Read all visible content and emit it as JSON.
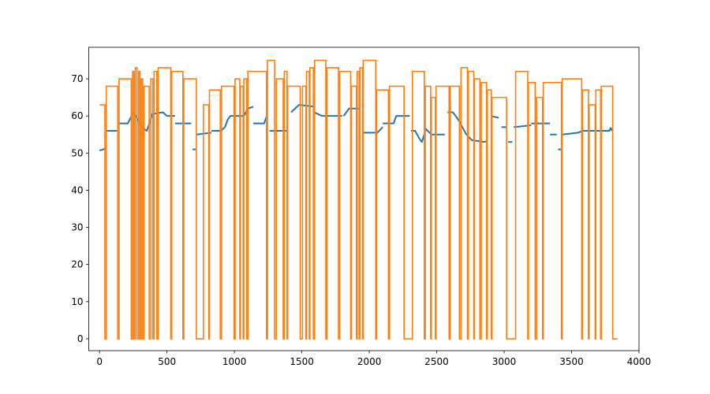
{
  "chart_data": {
    "type": "line",
    "title": "",
    "xlabel": "",
    "ylabel": "",
    "xlim": [
      -80,
      4000
    ],
    "ylim": [
      -3.2,
      78.5
    ],
    "xticks": [
      0,
      500,
      1000,
      1500,
      2000,
      2500,
      3000,
      3500,
      4000
    ],
    "yticks": [
      0,
      10,
      20,
      30,
      40,
      50,
      60,
      70
    ],
    "xtick_labels": [
      "0",
      "500",
      "1000",
      "1500",
      "2000",
      "2500",
      "3000",
      "3500",
      "4000"
    ],
    "ytick_labels": [
      "0",
      "10",
      "20",
      "30",
      "40",
      "50",
      "60",
      "70"
    ],
    "grid": false,
    "legend": false,
    "series": [
      {
        "color": "#1f77b4",
        "style": "step-segments",
        "segments": [
          [
            [
              0,
              50.7
            ],
            [
              30,
              51.0
            ],
            [
              50,
              51.6
            ]
          ],
          [
            [
              50,
              56.0
            ],
            [
              130,
              56.0
            ]
          ],
          [
            [
              140,
              58.0
            ],
            [
              210,
              58.0
            ],
            [
              230,
              59.5
            ],
            [
              250,
              61.0
            ],
            [
              270,
              60.0
            ],
            [
              300,
              58.0
            ],
            [
              330,
              56.5
            ],
            [
              350,
              56.0
            ],
            [
              370,
              58.0
            ],
            [
              390,
              60.5
            ],
            [
              470,
              61.0
            ],
            [
              500,
              60.0
            ],
            [
              560,
              60.0
            ]
          ],
          [
            [
              560,
              58.0
            ],
            [
              680,
              58.0
            ]
          ],
          [
            [
              690,
              51.0
            ],
            [
              720,
              51.0
            ]
          ],
          [
            [
              720,
              55.0
            ],
            [
              830,
              55.5
            ]
          ],
          [
            [
              830,
              56.0
            ],
            [
              900,
              56.0
            ],
            [
              930,
              57.0
            ],
            [
              950,
              59.0
            ],
            [
              970,
              60.0
            ],
            [
              1000,
              60.0
            ],
            [
              1070,
              60.0
            ],
            [
              1100,
              62.0
            ],
            [
              1140,
              62.5
            ]
          ],
          [
            [
              1140,
              58.0
            ],
            [
              1220,
              58.0
            ],
            [
              1240,
              60.0
            ]
          ],
          [
            [
              1260,
              56.0
            ],
            [
              1400,
              56.0
            ]
          ],
          [
            [
              1420,
              61.0
            ],
            [
              1480,
              63.0
            ],
            [
              1590,
              62.5
            ]
          ],
          [
            [
              1590,
              61.0
            ],
            [
              1650,
              60.0
            ],
            [
              1800,
              60.0
            ]
          ],
          [
            [
              1810,
              60.0
            ],
            [
              1850,
              62.0
            ],
            [
              1930,
              62.0
            ]
          ],
          [
            [
              1950,
              55.5
            ],
            [
              2060,
              55.5
            ],
            [
              2100,
              57.0
            ]
          ],
          [
            [
              2100,
              58.0
            ],
            [
              2180,
              58.0
            ],
            [
              2200,
              60.0
            ],
            [
              2300,
              60.0
            ]
          ],
          [
            [
              2310,
              56.0
            ],
            [
              2340,
              56.0
            ],
            [
              2370,
              54.0
            ],
            [
              2390,
              53.0
            ],
            [
              2420,
              56.5
            ],
            [
              2460,
              55.0
            ],
            [
              2560,
              55.0
            ]
          ],
          [
            [
              2580,
              61.0
            ],
            [
              2620,
              61.0
            ],
            [
              2660,
              59.0
            ],
            [
              2690,
              57.0
            ],
            [
              2720,
              55.0
            ],
            [
              2760,
              53.5
            ],
            [
              2850,
              53.0
            ],
            [
              2880,
              53.3
            ]
          ],
          [
            [
              2900,
              60.0
            ],
            [
              2960,
              59.5
            ]
          ],
          [
            [
              2980,
              57.0
            ],
            [
              3020,
              57.0
            ]
          ],
          [
            [
              3030,
              53.0
            ],
            [
              3060,
              53.0
            ]
          ],
          [
            [
              3070,
              57.0
            ],
            [
              3200,
              57.5
            ]
          ],
          [
            [
              3200,
              58.0
            ],
            [
              3340,
              58.0
            ]
          ],
          [
            [
              3340,
              55.0
            ],
            [
              3390,
              55.0
            ]
          ],
          [
            [
              3400,
              51.0
            ],
            [
              3430,
              51.0
            ]
          ],
          [
            [
              3430,
              55.0
            ],
            [
              3550,
              55.5
            ],
            [
              3580,
              56.0
            ],
            [
              3780,
              56.0
            ],
            [
              3790,
              56.8
            ],
            [
              3800,
              56.0
            ]
          ]
        ]
      },
      {
        "color": "#ff7f0e",
        "style": "step",
        "points": [
          [
            0,
            63
          ],
          [
            30,
            63
          ],
          [
            40,
            0
          ],
          [
            50,
            68
          ],
          [
            130,
            68
          ],
          [
            135,
            0
          ],
          [
            145,
            70
          ],
          [
            220,
            70
          ],
          [
            235,
            0
          ],
          [
            245,
            72
          ],
          [
            255,
            0
          ],
          [
            265,
            73
          ],
          [
            278,
            0
          ],
          [
            290,
            72
          ],
          [
            300,
            0
          ],
          [
            310,
            70
          ],
          [
            320,
            0
          ],
          [
            330,
            68
          ],
          [
            360,
            68
          ],
          [
            368,
            0
          ],
          [
            380,
            70
          ],
          [
            395,
            0
          ],
          [
            405,
            72
          ],
          [
            425,
            0
          ],
          [
            435,
            73
          ],
          [
            520,
            73
          ],
          [
            528,
            0
          ],
          [
            535,
            72
          ],
          [
            610,
            72
          ],
          [
            618,
            0
          ],
          [
            625,
            70
          ],
          [
            710,
            70
          ],
          [
            718,
            0
          ],
          [
            760,
            0
          ],
          [
            770,
            63
          ],
          [
            805,
            63
          ],
          [
            810,
            0
          ],
          [
            815,
            67
          ],
          [
            890,
            67
          ],
          [
            895,
            0
          ],
          [
            905,
            68
          ],
          [
            990,
            68
          ],
          [
            998,
            0
          ],
          [
            1005,
            70
          ],
          [
            1030,
            70
          ],
          [
            1040,
            0
          ],
          [
            1045,
            68
          ],
          [
            1060,
            68
          ],
          [
            1065,
            0
          ],
          [
            1070,
            70
          ],
          [
            1085,
            70
          ],
          [
            1090,
            0
          ],
          [
            1100,
            72
          ],
          [
            1230,
            72
          ],
          [
            1238,
            0
          ],
          [
            1245,
            75
          ],
          [
            1290,
            75
          ],
          [
            1298,
            0
          ],
          [
            1310,
            70
          ],
          [
            1355,
            70
          ],
          [
            1362,
            0
          ],
          [
            1370,
            72
          ],
          [
            1385,
            72
          ],
          [
            1390,
            0
          ],
          [
            1395,
            68
          ],
          [
            1480,
            68
          ],
          [
            1488,
            0
          ],
          [
            1500,
            0
          ],
          [
            1505,
            68
          ],
          [
            1525,
            68
          ],
          [
            1530,
            0
          ],
          [
            1535,
            72
          ],
          [
            1550,
            72
          ],
          [
            1555,
            0
          ],
          [
            1560,
            73
          ],
          [
            1580,
            73
          ],
          [
            1585,
            0
          ],
          [
            1595,
            75
          ],
          [
            1670,
            75
          ],
          [
            1678,
            0
          ],
          [
            1685,
            73
          ],
          [
            1765,
            73
          ],
          [
            1772,
            0
          ],
          [
            1780,
            72
          ],
          [
            1855,
            72
          ],
          [
            1862,
            0
          ],
          [
            1868,
            68
          ],
          [
            1900,
            68
          ],
          [
            1905,
            0
          ],
          [
            1910,
            72
          ],
          [
            1920,
            72
          ],
          [
            1925,
            0
          ],
          [
            1930,
            73
          ],
          [
            1945,
            73
          ],
          [
            1950,
            0
          ],
          [
            1955,
            75
          ],
          [
            2040,
            75
          ],
          [
            2048,
            0
          ],
          [
            2055,
            67
          ],
          [
            2135,
            67
          ],
          [
            2142,
            0
          ],
          [
            2150,
            68
          ],
          [
            2250,
            68
          ],
          [
            2258,
            0
          ],
          [
            2315,
            0
          ],
          [
            2320,
            72
          ],
          [
            2400,
            72
          ],
          [
            2408,
            0
          ],
          [
            2415,
            68
          ],
          [
            2450,
            68
          ],
          [
            2455,
            0
          ],
          [
            2460,
            65
          ],
          [
            2485,
            65
          ],
          [
            2490,
            0
          ],
          [
            2495,
            68
          ],
          [
            2585,
            68
          ],
          [
            2592,
            0
          ],
          [
            2600,
            68
          ],
          [
            2660,
            68
          ],
          [
            2668,
            0
          ],
          [
            2680,
            73
          ],
          [
            2720,
            73
          ],
          [
            2728,
            0
          ],
          [
            2735,
            72
          ],
          [
            2770,
            72
          ],
          [
            2775,
            0
          ],
          [
            2780,
            70
          ],
          [
            2815,
            70
          ],
          [
            2820,
            0
          ],
          [
            2830,
            69
          ],
          [
            2865,
            69
          ],
          [
            2870,
            0
          ],
          [
            2875,
            67
          ],
          [
            2900,
            67
          ],
          [
            2905,
            0
          ],
          [
            2910,
            65
          ],
          [
            3010,
            65
          ],
          [
            3018,
            0
          ],
          [
            3080,
            0
          ],
          [
            3085,
            72
          ],
          [
            3170,
            72
          ],
          [
            3175,
            0
          ],
          [
            3180,
            69
          ],
          [
            3225,
            69
          ],
          [
            3230,
            0
          ],
          [
            3240,
            65
          ],
          [
            3280,
            65
          ],
          [
            3285,
            0
          ],
          [
            3290,
            69
          ],
          [
            3420,
            69
          ],
          [
            3425,
            0
          ],
          [
            3430,
            70
          ],
          [
            3570,
            70
          ],
          [
            3575,
            0
          ],
          [
            3580,
            67
          ],
          [
            3620,
            67
          ],
          [
            3625,
            0
          ],
          [
            3630,
            63
          ],
          [
            3670,
            63
          ],
          [
            3675,
            0
          ],
          [
            3680,
            67
          ],
          [
            3710,
            67
          ],
          [
            3715,
            0
          ],
          [
            3720,
            68
          ],
          [
            3800,
            68
          ],
          [
            3805,
            0
          ],
          [
            3840,
            0
          ]
        ]
      }
    ]
  }
}
